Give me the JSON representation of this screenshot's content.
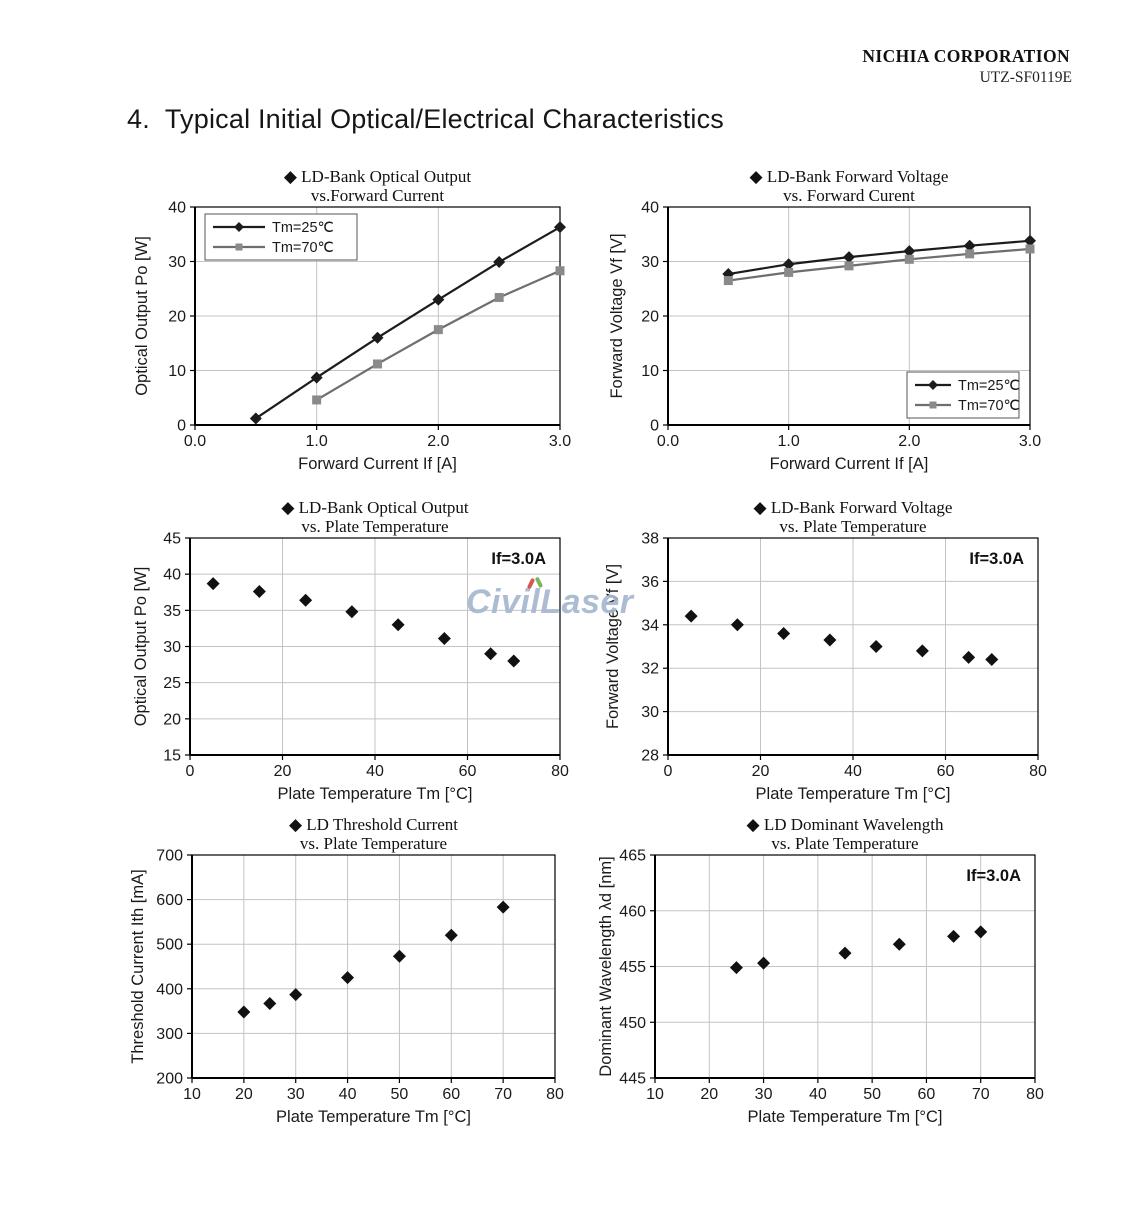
{
  "page": {
    "company": "NICHIA CORPORATION",
    "doc_number": "UTZ-SF0119E",
    "section_title": "4.  Typical Initial Optical/Electrical Characteristics",
    "watermark": {
      "text": "CivilLaser",
      "color": "#a5b8d0"
    }
  },
  "colors": {
    "series_25C": "#1c1c1c",
    "series_70C_line": "#6e6e6e",
    "series_70C_marker": "#8a8a8a",
    "grid": "#c3c3c3",
    "axis": "#000000",
    "scatter": "#111111"
  },
  "chart_data": [
    {
      "id": "optical-output-vs-forward-current",
      "type": "line",
      "bullet": "◆",
      "title_line1": "LD-Bank Optical Output",
      "title_line2": "vs.Forward Current",
      "xlabel": "Forward Current If [A]",
      "ylabel": "Optical Output Po [W]",
      "xlim": [
        0,
        3
      ],
      "ylim": [
        0,
        40
      ],
      "x_ticks": [
        0,
        1,
        2,
        3
      ],
      "x_tick_labels": [
        "0.0",
        "1.0",
        "2.0",
        "3.0"
      ],
      "y_ticks": [
        0,
        10,
        20,
        30,
        40
      ],
      "grid": true,
      "legend": {
        "position": "top-left"
      },
      "series": [
        {
          "name": "Tm=25℃",
          "marker": "diamond",
          "line": true,
          "x": [
            0.5,
            1.0,
            1.5,
            2.0,
            2.5,
            3.0
          ],
          "y": [
            1.2,
            8.7,
            16.0,
            23.0,
            29.9,
            36.3
          ]
        },
        {
          "name": "Tm=70℃",
          "marker": "square",
          "line": true,
          "x": [
            1.0,
            1.5,
            2.0,
            2.5,
            3.0
          ],
          "y": [
            4.6,
            11.2,
            17.5,
            23.4,
            28.3
          ]
        }
      ]
    },
    {
      "id": "forward-voltage-vs-forward-current",
      "type": "line",
      "bullet": "◆",
      "title_line1": "LD-Bank Forward Voltage",
      "title_line2": "vs. Forward Curent",
      "xlabel": "Forward Current If [A]",
      "ylabel": "Forward Voltage Vf [V]",
      "xlim": [
        0,
        3
      ],
      "ylim": [
        0,
        40
      ],
      "x_ticks": [
        0,
        1,
        2,
        3
      ],
      "x_tick_labels": [
        "0.0",
        "1.0",
        "2.0",
        "3.0"
      ],
      "y_ticks": [
        0,
        10,
        20,
        30,
        40
      ],
      "grid": true,
      "legend": {
        "position": "bottom-right"
      },
      "series": [
        {
          "name": "Tm=25℃",
          "marker": "diamond",
          "line": true,
          "x": [
            0.5,
            1.0,
            1.5,
            2.0,
            2.5,
            3.0
          ],
          "y": [
            27.7,
            29.5,
            30.8,
            31.9,
            32.9,
            33.8
          ]
        },
        {
          "name": "Tm=70℃",
          "marker": "square",
          "line": true,
          "x": [
            0.5,
            1.0,
            1.5,
            2.0,
            2.5,
            3.0
          ],
          "y": [
            26.5,
            28.0,
            29.2,
            30.4,
            31.4,
            32.3
          ]
        }
      ]
    },
    {
      "id": "optical-output-vs-plate-temperature",
      "type": "scatter",
      "bullet": "◆",
      "title_line1": "LD-Bank Optical Output",
      "title_line2": "vs. Plate Temperature",
      "xlabel": "Plate Temperature Tm [°C]",
      "ylabel": "Optical Output Po [W]",
      "annotation": "If=3.0A",
      "xlim": [
        0,
        80
      ],
      "ylim": [
        15,
        45
      ],
      "x_ticks": [
        0,
        20,
        40,
        60,
        80
      ],
      "y_ticks": [
        15,
        20,
        25,
        30,
        35,
        40,
        45
      ],
      "grid": true,
      "series": [
        {
          "name": "Po",
          "marker": "diamond",
          "line": false,
          "x": [
            5,
            15,
            25,
            35,
            45,
            55,
            65,
            70
          ],
          "y": [
            38.7,
            37.6,
            36.4,
            34.8,
            33.0,
            31.1,
            29.0,
            28.0
          ]
        }
      ]
    },
    {
      "id": "forward-voltage-vs-plate-temperature",
      "type": "scatter",
      "bullet": "◆",
      "title_line1": "LD-Bank Forward Voltage",
      "title_line2": "vs. Plate Temperature",
      "xlabel": "Plate Temperature Tm [°C]",
      "ylabel": "Forward Voltage Vf [V]",
      "annotation": "If=3.0A",
      "xlim": [
        0,
        80
      ],
      "ylim": [
        28,
        38
      ],
      "x_ticks": [
        0,
        20,
        40,
        60,
        80
      ],
      "y_ticks": [
        28,
        30,
        32,
        34,
        36,
        38
      ],
      "grid": true,
      "series": [
        {
          "name": "Vf",
          "marker": "diamond",
          "line": false,
          "x": [
            5,
            15,
            25,
            35,
            45,
            55,
            65,
            70
          ],
          "y": [
            34.4,
            34.0,
            33.6,
            33.3,
            33.0,
            32.8,
            32.5,
            32.4
          ]
        }
      ]
    },
    {
      "id": "threshold-current-vs-plate-temperature",
      "type": "scatter",
      "bullet": "◆",
      "title_line1": "LD Threshold Current",
      "title_line2": "vs. Plate Temperature",
      "xlabel": "Plate Temperature Tm [°C]",
      "ylabel": "Threshold Current  Ith [mA]",
      "xlim": [
        10,
        80
      ],
      "ylim": [
        200,
        700
      ],
      "x_ticks": [
        10,
        20,
        30,
        40,
        50,
        60,
        70,
        80
      ],
      "y_ticks": [
        200,
        300,
        400,
        500,
        600,
        700
      ],
      "grid": true,
      "series": [
        {
          "name": "Ith",
          "marker": "diamond",
          "line": false,
          "x": [
            20,
            25,
            30,
            40,
            50,
            60,
            70
          ],
          "y": [
            348,
            367,
            387,
            425,
            473,
            520,
            583
          ]
        }
      ]
    },
    {
      "id": "dominant-wavelength-vs-plate-temperature",
      "type": "scatter",
      "bullet": "◆",
      "title_line1": "LD Dominant Wavelength",
      "title_line2": "vs. Plate Temperature",
      "xlabel": "Plate Temperature Tm [°C]",
      "ylabel": "Dominant Wavelength λd [nm]",
      "annotation": "If=3.0A",
      "xlim": [
        10,
        80
      ],
      "ylim": [
        445,
        465
      ],
      "x_ticks": [
        10,
        20,
        30,
        40,
        50,
        60,
        70,
        80
      ],
      "y_ticks": [
        445,
        450,
        455,
        460,
        465
      ],
      "grid": true,
      "series": [
        {
          "name": "λd",
          "marker": "diamond",
          "line": false,
          "x": [
            25,
            30,
            45,
            55,
            65,
            70
          ],
          "y": [
            454.9,
            455.3,
            456.2,
            457.0,
            457.7,
            458.1
          ]
        }
      ]
    }
  ]
}
